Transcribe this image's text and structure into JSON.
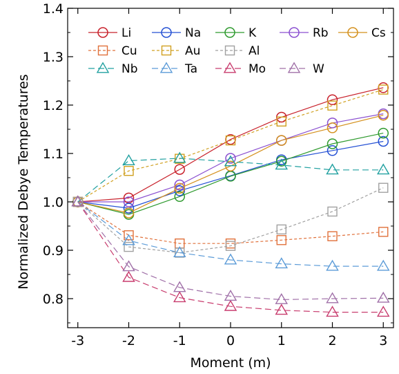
{
  "chart_data": {
    "type": "line",
    "xlabel": "Moment (m)",
    "ylabel": "Normalized Debye Temperatures",
    "x": [
      -3,
      -2,
      -1,
      0,
      1,
      2,
      3
    ],
    "xlim": [
      -3.2,
      3.2
    ],
    "ylim": [
      0.74,
      1.4
    ],
    "xticks": [
      "-3",
      "-2",
      "-1",
      "0",
      "1",
      "2",
      "3"
    ],
    "yticks": [
      "0.8",
      "0.9",
      "1.0",
      "1.1",
      "1.2",
      "1.3",
      "1.4"
    ],
    "ytick_values": [
      0.8,
      0.9,
      1.0,
      1.1,
      1.2,
      1.3,
      1.4
    ],
    "grid": false,
    "legend_position": "top",
    "series": [
      {
        "name": "Li",
        "color": "#c8202a",
        "marker": "circle",
        "dash": "solid",
        "values": [
          1.0,
          1.008,
          1.067,
          1.129,
          1.175,
          1.211,
          1.236
        ]
      },
      {
        "name": "Na",
        "color": "#2450d4",
        "marker": "circle",
        "dash": "solid",
        "values": [
          1.0,
          0.987,
          1.023,
          1.054,
          1.087,
          1.106,
          1.125
        ]
      },
      {
        "name": "K",
        "color": "#2e9a2e",
        "marker": "circle",
        "dash": "solid",
        "values": [
          1.0,
          0.974,
          1.011,
          1.053,
          1.084,
          1.12,
          1.142
        ]
      },
      {
        "name": "Rb",
        "color": "#8a4fd0",
        "marker": "circle",
        "dash": "solid",
        "values": [
          1.0,
          1.0,
          1.035,
          1.09,
          1.127,
          1.163,
          1.182
        ]
      },
      {
        "name": "Cs",
        "color": "#d4901c",
        "marker": "circle",
        "dash": "solid",
        "values": [
          1.0,
          0.977,
          1.028,
          1.074,
          1.127,
          1.153,
          1.179
        ]
      },
      {
        "name": "Cu",
        "color": "#e0703a",
        "marker": "square",
        "dash": "dotted",
        "values": [
          1.0,
          0.931,
          0.914,
          0.914,
          0.921,
          0.929,
          0.938
        ]
      },
      {
        "name": "Au",
        "color": "#d0a020",
        "marker": "square",
        "dash": "dotted",
        "values": [
          1.0,
          1.064,
          1.089,
          1.127,
          1.166,
          1.199,
          1.232
        ]
      },
      {
        "name": "Al",
        "color": "#a0a0a0",
        "marker": "square",
        "dash": "dotted",
        "values": [
          1.0,
          0.907,
          0.895,
          0.909,
          0.943,
          0.98,
          1.029
        ]
      },
      {
        "name": "Nb",
        "color": "#20a0a0",
        "marker": "triangle",
        "dash": "dashed",
        "values": [
          1.0,
          1.085,
          1.09,
          1.083,
          1.076,
          1.066,
          1.066
        ]
      },
      {
        "name": "Ta",
        "color": "#5b9bd8",
        "marker": "triangle",
        "dash": "dashed",
        "values": [
          1.0,
          0.92,
          0.895,
          0.88,
          0.872,
          0.867,
          0.867
        ]
      },
      {
        "name": "Mo",
        "color": "#c83c6e",
        "marker": "triangle",
        "dash": "dashed",
        "values": [
          1.0,
          0.844,
          0.802,
          0.784,
          0.776,
          0.772,
          0.772
        ]
      },
      {
        "name": "W",
        "color": "#a070a8",
        "marker": "triangle",
        "dash": "dashed",
        "values": [
          1.0,
          0.866,
          0.823,
          0.805,
          0.798,
          0.8,
          0.801
        ]
      }
    ]
  }
}
